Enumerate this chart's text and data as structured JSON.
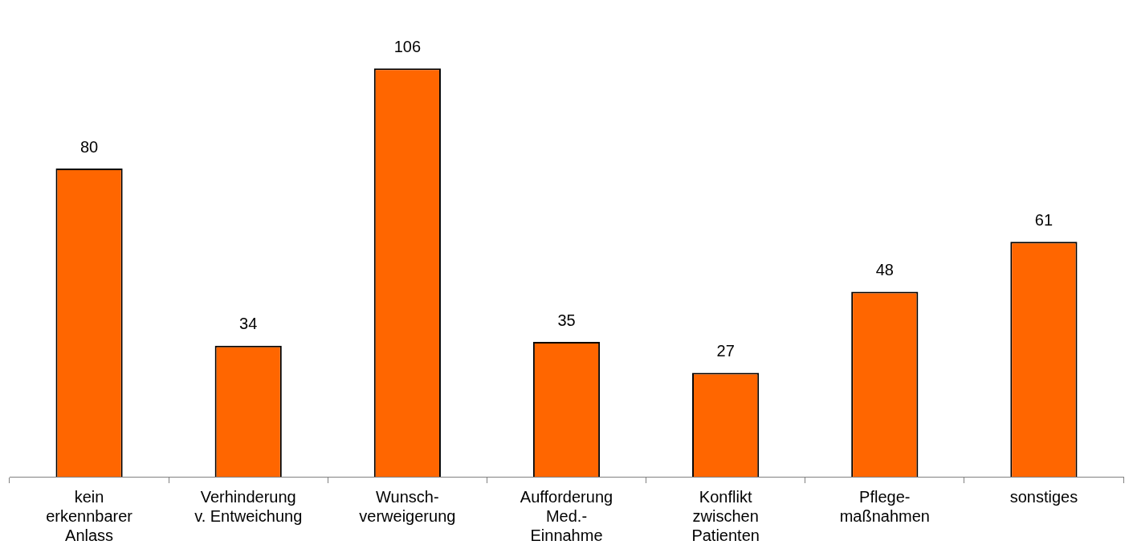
{
  "chart_data": {
    "type": "bar",
    "categories": [
      "kein\nerkennbarer\nAnlass",
      "Verhinderung\nv. Entweichung",
      "Wunsch-\nverweigerung",
      "Aufforderung\nMed.-\nEinnahme",
      "Konflikt\nzwischen\nPatienten",
      "Pflege-\nmaßnahmen",
      "sonstiges"
    ],
    "values": [
      80,
      34,
      106,
      35,
      27,
      48,
      61
    ],
    "color": "#ff6600",
    "data_labels": true,
    "grid": false,
    "legend": false
  }
}
